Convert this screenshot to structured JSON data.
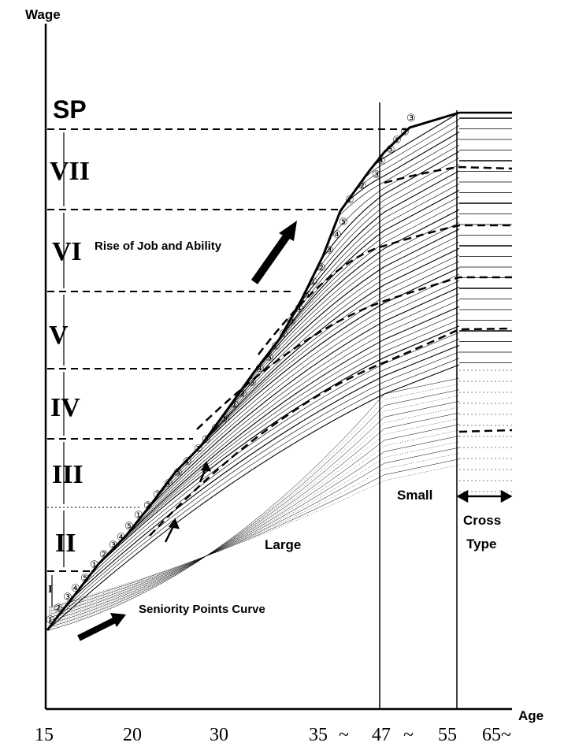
{
  "axes": {
    "y_label": "Wage",
    "x_label": "Age",
    "x_ticks": [
      "15",
      "20",
      "30",
      "35",
      "~",
      "47",
      "~",
      "55",
      "65~"
    ]
  },
  "grades": {
    "top_label": "SP",
    "levels": [
      "VII",
      "VI",
      "V",
      "IV",
      "III",
      "II",
      "I"
    ]
  },
  "labels": {
    "rise": "Rise of Job and Ability",
    "seniority": "Seniority Points Curve",
    "large": "Large",
    "small": "Small",
    "cross": "Cross",
    "type": "Type"
  },
  "step_markers": [
    "①",
    "②",
    "③",
    "④",
    "⑤"
  ],
  "colors": {
    "ink": "#000000",
    "background": "#ffffff"
  }
}
